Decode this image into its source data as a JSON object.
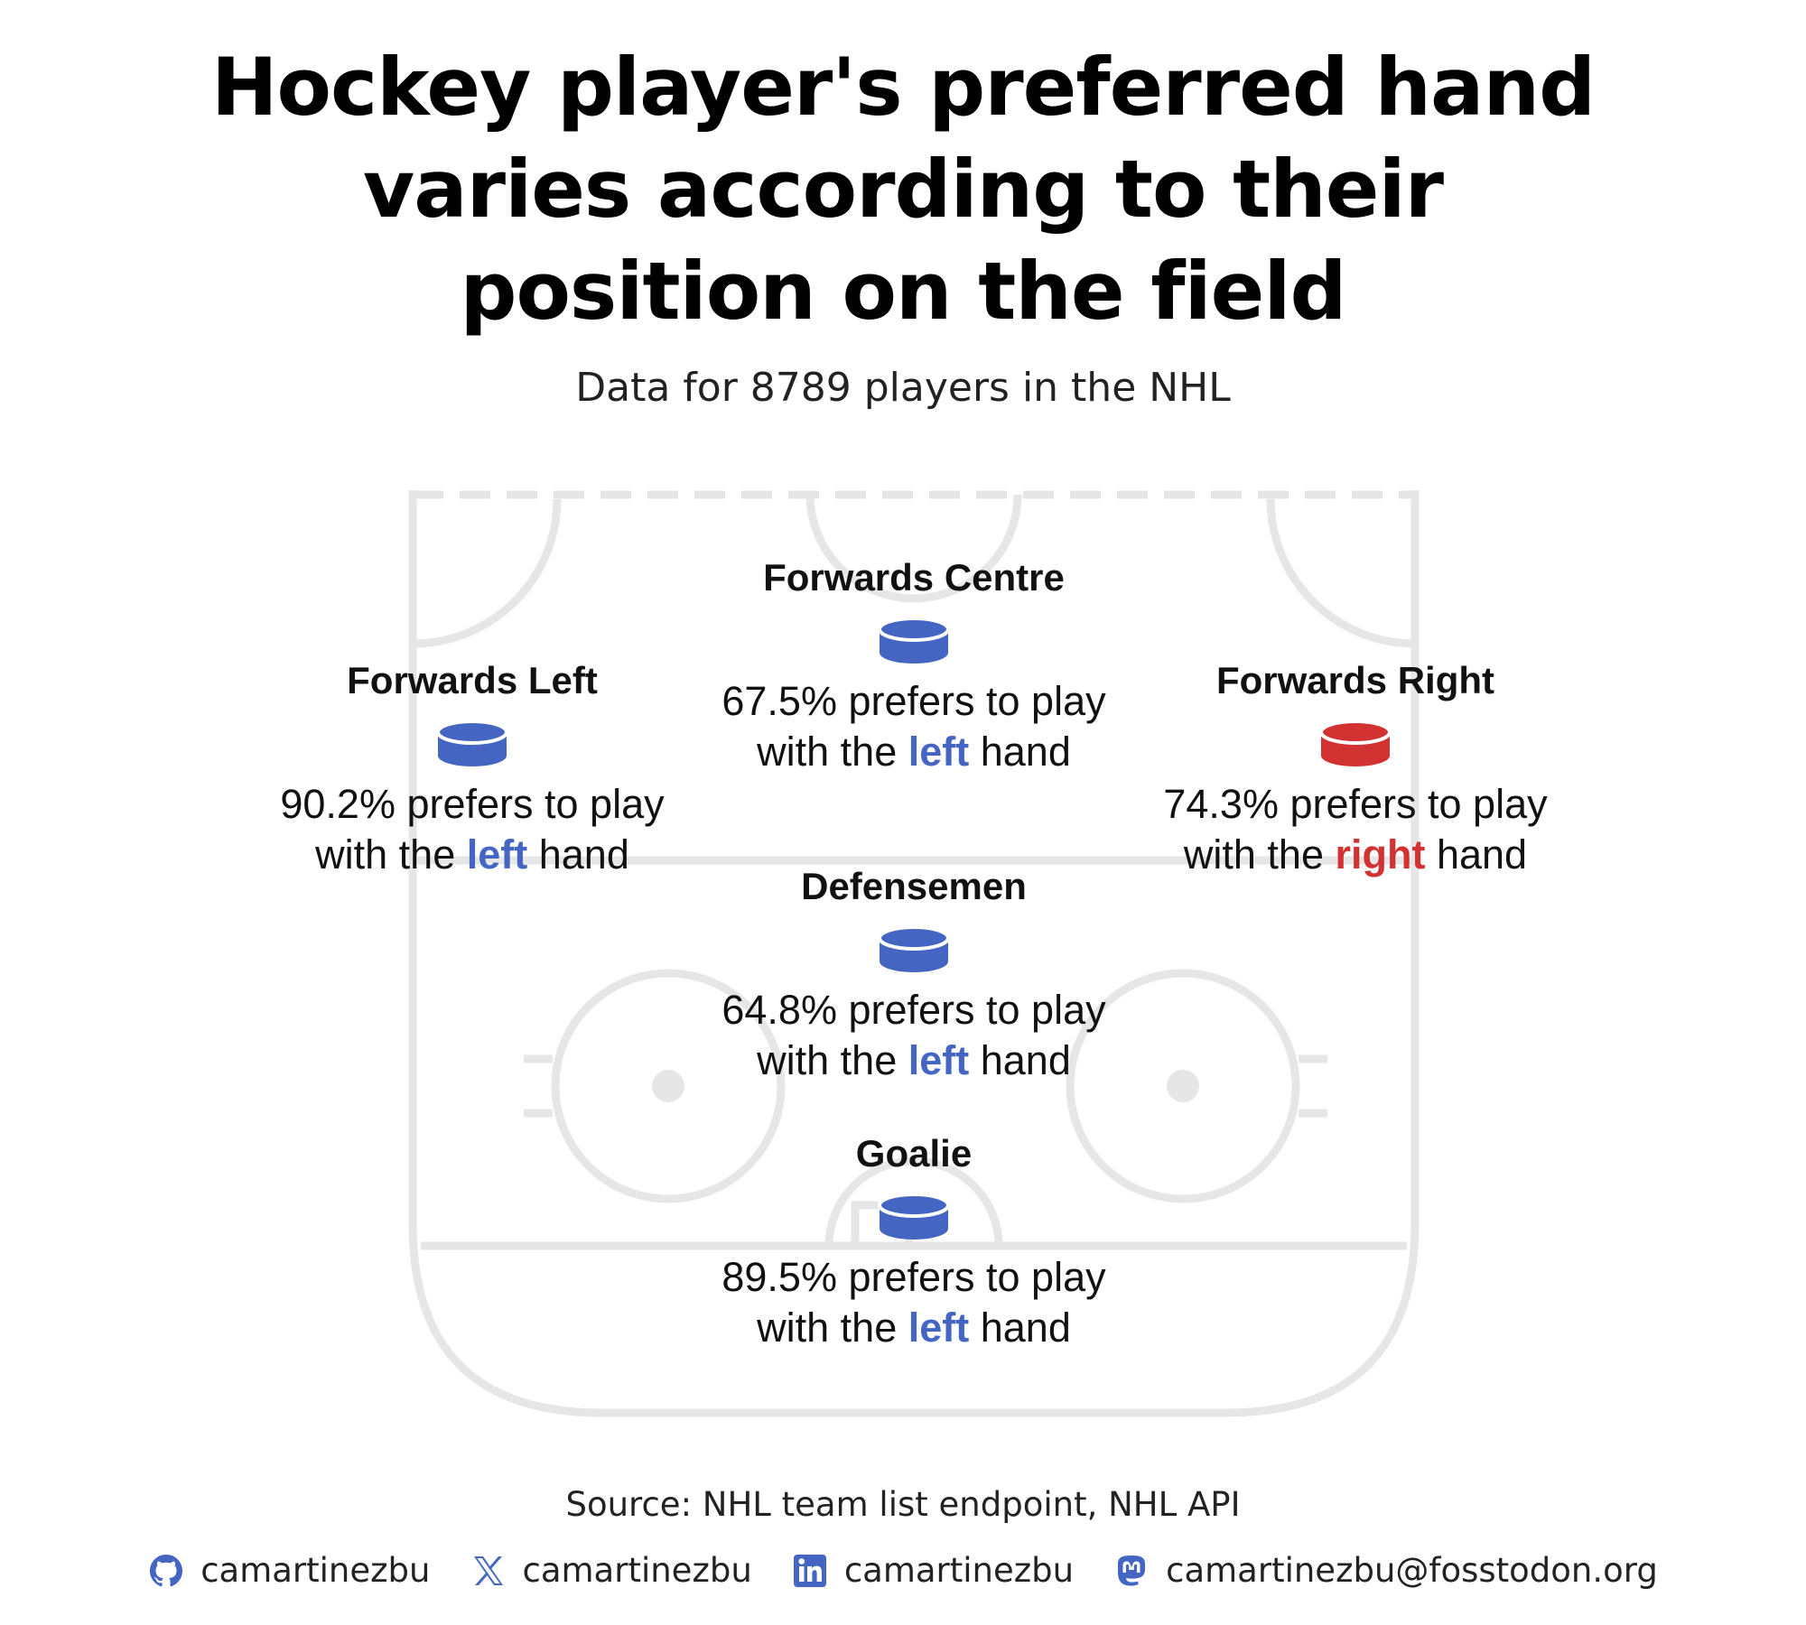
{
  "title_lines": [
    "Hockey player's preferred hand",
    "varies according to their",
    "position on the field"
  ],
  "subtitle": "Data for 8789 players in the NHL",
  "colors": {
    "left": "#4466c2",
    "right": "#d23232",
    "rink": "#e6e6e6"
  },
  "chart_data": {
    "type": "table",
    "positions": [
      {
        "name": "Forwards Centre",
        "percent_text": "67.5%",
        "value": 67.5,
        "hand": "left",
        "line1_suffix": " prefers to play",
        "line2_prefix": "with the ",
        "line2_suffix": " hand"
      },
      {
        "name": "Forwards Left",
        "percent_text": "90.2%",
        "value": 90.2,
        "hand": "left",
        "line1_suffix": " prefers to play",
        "line2_prefix": "with the ",
        "line2_suffix": " hand"
      },
      {
        "name": "Forwards Right",
        "percent_text": "74.3%",
        "value": 74.3,
        "hand": "right",
        "line1_suffix": " prefers to play",
        "line2_prefix": "with the ",
        "line2_suffix": " hand"
      },
      {
        "name": "Defensemen",
        "percent_text": "64.8%",
        "value": 64.8,
        "hand": "left",
        "line1_suffix": " prefers to play",
        "line2_prefix": "with the ",
        "line2_suffix": " hand"
      },
      {
        "name": "Goalie",
        "percent_text": "89.5%",
        "value": 89.5,
        "hand": "left",
        "line1_suffix": " prefers to play",
        "line2_prefix": "with the ",
        "line2_suffix": " hand"
      }
    ]
  },
  "source": "Source: NHL team list endpoint, NHL API",
  "socials": [
    {
      "icon": "github-icon",
      "handle": "camartinezbu"
    },
    {
      "icon": "x-icon",
      "handle": "camartinezbu"
    },
    {
      "icon": "linkedin-icon",
      "handle": "camartinezbu"
    },
    {
      "icon": "mastodon-icon",
      "handle": "camartinezbu@fosstodon.org"
    }
  ]
}
